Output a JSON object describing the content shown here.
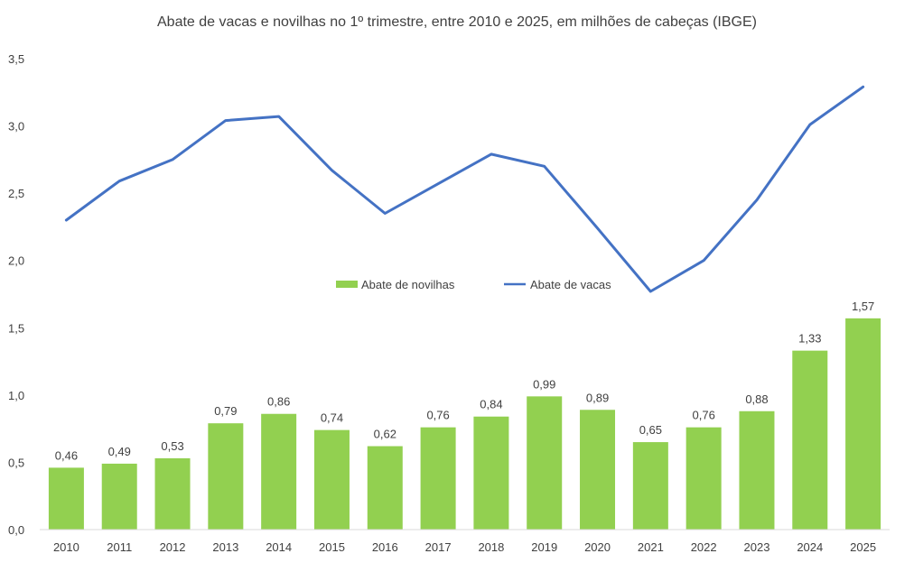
{
  "chart_data": {
    "type": "bar",
    "title": "Abate de vacas e novilhas no 1º trimestre, entre 2010 e 2025, em milhões de cabeças (IBGE)",
    "xlabel": "",
    "ylabel": "",
    "ylim": [
      0,
      3.5
    ],
    "y_ticks": [
      "0,0",
      "0,5",
      "1,0",
      "1,5",
      "2,0",
      "2,5",
      "3,0",
      "3,5"
    ],
    "grid": false,
    "legend_position": "center",
    "categories": [
      "2010",
      "2011",
      "2012",
      "2013",
      "2014",
      "2015",
      "2016",
      "2017",
      "2018",
      "2019",
      "2020",
      "2021",
      "2022",
      "2023",
      "2024",
      "2025"
    ],
    "series": [
      {
        "name": "Abate de novilhas",
        "type": "bar",
        "color": "#92d050",
        "values": [
          0.46,
          0.49,
          0.53,
          0.79,
          0.86,
          0.74,
          0.62,
          0.76,
          0.84,
          0.99,
          0.89,
          0.65,
          0.76,
          0.88,
          1.33,
          1.57
        ],
        "labels": [
          "0,46",
          "0,49",
          "0,53",
          "0,79",
          "0,86",
          "0,74",
          "0,62",
          "0,76",
          "0,84",
          "0,99",
          "0,89",
          "0,65",
          "0,76",
          "0,88",
          "1,33",
          "1,57"
        ]
      },
      {
        "name": "Abate de vacas",
        "type": "line",
        "color": "#4472c4",
        "values": [
          2.3,
          2.59,
          2.75,
          3.04,
          3.07,
          2.67,
          2.35,
          2.57,
          2.79,
          2.7,
          2.24,
          1.77,
          2.0,
          2.45,
          3.01,
          3.29
        ]
      }
    ]
  }
}
